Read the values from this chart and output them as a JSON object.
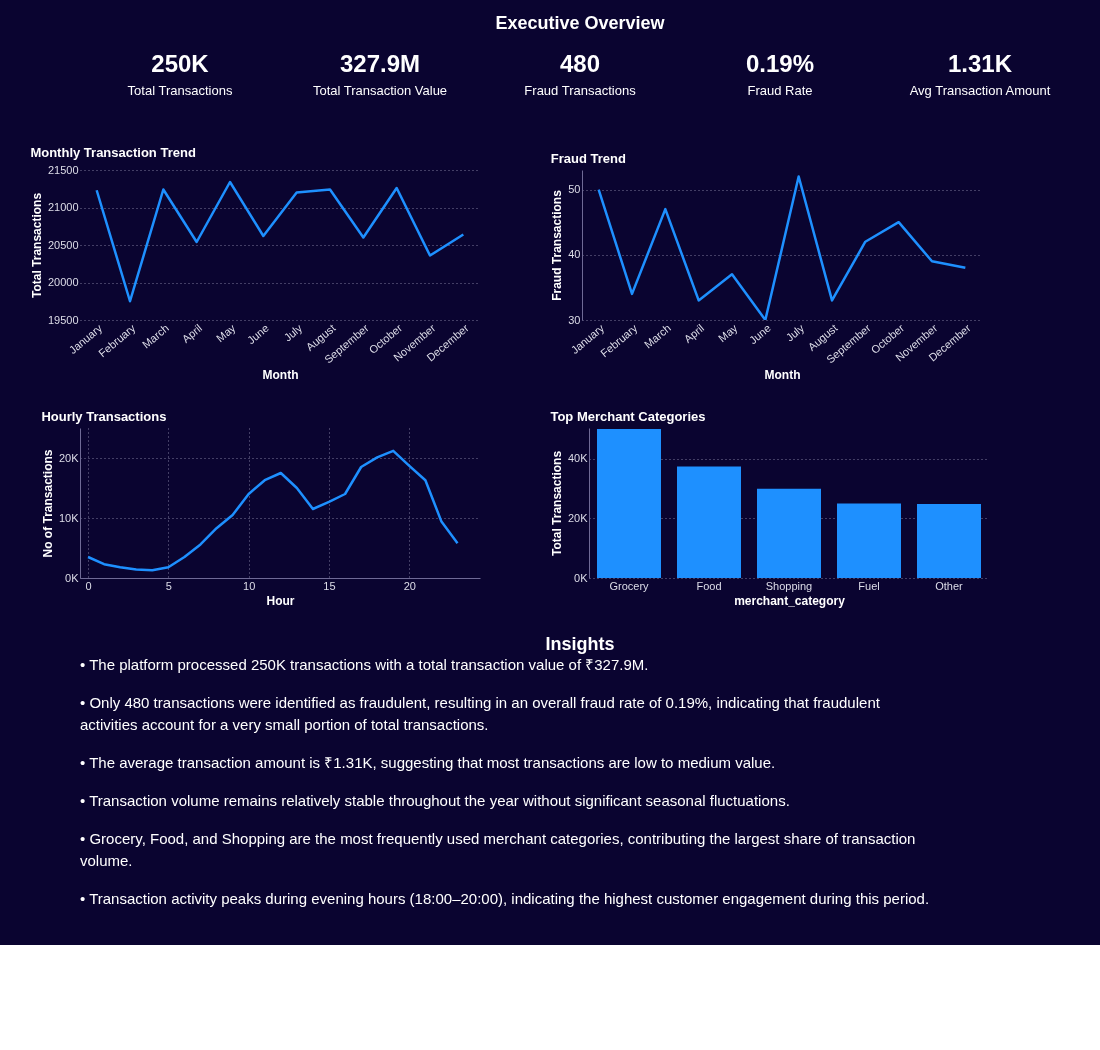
{
  "chart_data": [
    {
      "type": "other",
      "title": "Executive Overview",
      "annotations": [
        "250K",
        "Total Transactions",
        "327.9M",
        "Total Transaction Value",
        "480",
        "Fraud Transactions",
        "0.19%",
        "Fraud Rate",
        "1.31K",
        "Avg Transaction Amount"
      ]
    },
    {
      "type": "line",
      "title": "Monthly Transaction Trend",
      "xlabel": "Month",
      "ylabel": "Total Transactions",
      "categories": [
        "January",
        "February",
        "March",
        "April",
        "May",
        "June",
        "July",
        "August",
        "September",
        "October",
        "November",
        "December"
      ],
      "series": [
        {
          "color": "#1e90ff",
          "values": [
            21230,
            19750,
            21240,
            20540,
            21340,
            20620,
            21200,
            21240,
            20600,
            21260,
            20360,
            20640
          ]
        }
      ],
      "ylim": [
        19500,
        21500
      ],
      "yticks": [
        19500,
        20000,
        20500,
        21000,
        21500
      ],
      "grid": "y"
    },
    {
      "type": "line",
      "title": "Fraud Trend",
      "xlabel": "Month",
      "ylabel": "Fraud Transactions",
      "categories": [
        "January",
        "February",
        "March",
        "April",
        "May",
        "June",
        "July",
        "August",
        "September",
        "October",
        "November",
        "December"
      ],
      "series": [
        {
          "color": "#1e90ff",
          "values": [
            50,
            34,
            47,
            33,
            37,
            30,
            52,
            33,
            42,
            45,
            39,
            38
          ]
        }
      ],
      "ylim": [
        30,
        53
      ],
      "yticks": [
        30,
        40,
        50
      ],
      "grid": "y"
    },
    {
      "type": "line",
      "title": "Hourly Transactions",
      "xlabel": "Hour",
      "ylabel": "No of Transactions",
      "x": [
        0,
        1,
        2,
        3,
        4,
        5,
        6,
        7,
        8,
        9,
        10,
        11,
        12,
        13,
        14,
        15,
        16,
        17,
        18,
        19,
        20,
        21,
        22,
        23
      ],
      "series": [
        {
          "color": "#1e90ff",
          "values": [
            3500,
            2300,
            1800,
            1400,
            1300,
            1800,
            3500,
            5600,
            8300,
            10500,
            14000,
            16300,
            17500,
            15000,
            11500,
            12700,
            14000,
            18500,
            20100,
            21200,
            18700,
            16300,
            9400,
            5800
          ]
        }
      ],
      "xlim": [
        -0.5,
        24.4
      ],
      "xticks": [
        0,
        5,
        10,
        15,
        20
      ],
      "ylim": [
        0,
        25000
      ],
      "yticks": [
        {
          "value": 0,
          "label": "0K"
        },
        {
          "value": 10000,
          "label": "10K"
        },
        {
          "value": 20000,
          "label": "20K"
        }
      ],
      "grid": true
    },
    {
      "type": "bar",
      "title": "Top Merchant Categories",
      "xlabel": "merchant_category",
      "ylabel": "Total Transactions",
      "categories": [
        "Grocery",
        "Food",
        "Shopping",
        "Fuel",
        "Other"
      ],
      "series": [
        {
          "color": "#1e90ff",
          "values": [
            50000,
            37400,
            29900,
            25000,
            24800
          ]
        }
      ],
      "ylim": [
        0,
        50300
      ],
      "yticks": [
        {
          "value": 0,
          "label": "0K"
        },
        {
          "value": 20000,
          "label": "20K"
        },
        {
          "value": 40000,
          "label": "40K"
        }
      ],
      "grid": "y"
    },
    {
      "type": "other",
      "title": "Insights",
      "annotations": [
        "• The platform processed 250K transactions with a total transaction value of ₹327.9M.",
        "• Only 480 transactions were identified as fraudulent, resulting in an overall fraud rate of 0.19%, indicating that fraudulent activities account for a very small portion of total transactions.",
        "• The average transaction amount is ₹1.31K, suggesting that most transactions are low to medium value.",
        "• Transaction volume remains relatively stable throughout the year without significant seasonal fluctuations.",
        "• Grocery, Food, and Shopping are the most frequently used merchant categories, contributing the largest share of transaction volume.",
        "• Transaction activity peaks during evening hours (18:00–20:00), indicating the highest customer engagement during this period."
      ]
    }
  ]
}
